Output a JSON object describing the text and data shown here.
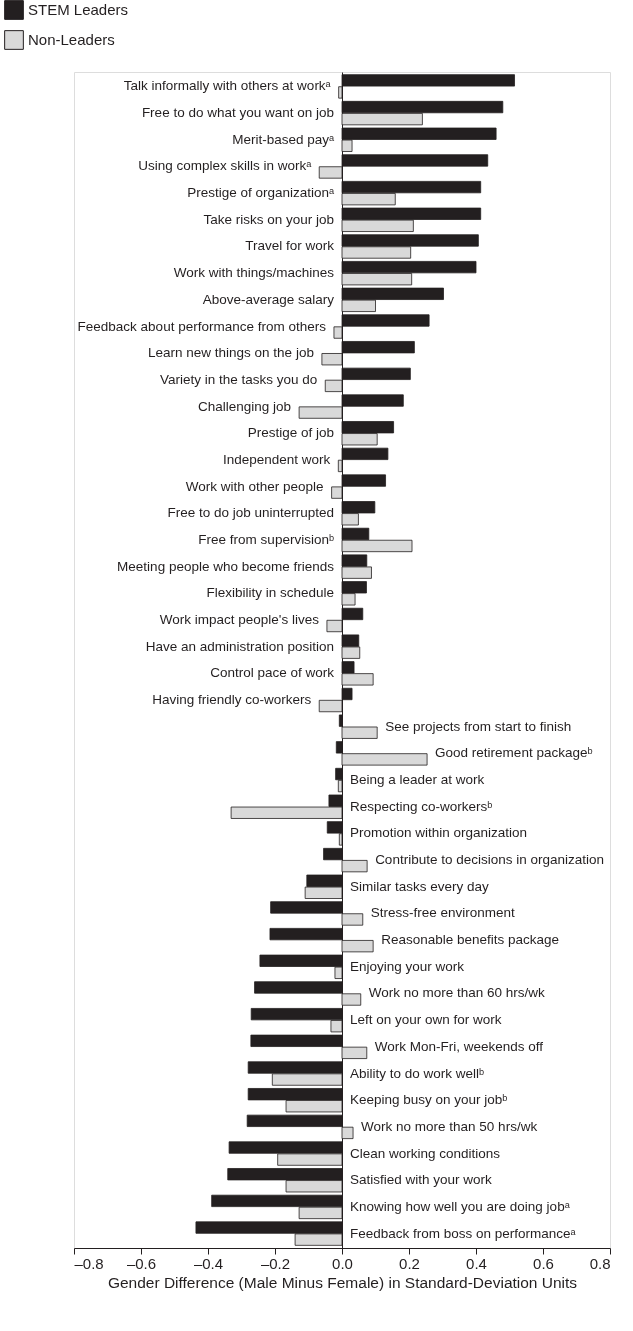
{
  "chart_data": {
    "type": "bar",
    "orientation": "horizontal",
    "xlabel": "Gender Difference (Male Minus Female) in Standard-Deviation Units",
    "categories": [
      "Talk informally with others at workᵃ",
      "Free to do what you want on job",
      "Merit-based payᵃ",
      "Using complex skills in workᵃ",
      "Prestige of organizationᵃ",
      "Take risks on your job",
      "Travel for work",
      "Work with things/machines",
      "Above-average salary",
      "Feedback about performance from others",
      "Learn new things on the job",
      "Variety in the tasks you do",
      "Challenging job",
      "Prestige of job",
      "Independent work",
      "Work with other people",
      "Free to do job uninterrupted",
      "Free from supervisionᵇ",
      "Meeting people who become friends",
      "Flexibility in schedule",
      "Work impact people's lives",
      "Have an administration position",
      "Control pace of work",
      "Having friendly co-workers",
      "See projects from start to finish",
      "Good retirement packageᵇ",
      "Being a leader at work",
      "Respecting co-workersᵇ",
      "Promotion within organization",
      "Contribute to decisions in organization",
      "Similar tasks every day",
      "Stress-free environment",
      "Reasonable benefits package",
      "Enjoying your work",
      "Work no more than 60 hrs/wk",
      "Left on your own for work",
      "Work Mon-Fri, weekends off",
      "Ability to do work wellᵇ",
      "Keeping busy on your jobᵇ",
      "Work no more than 50 hrs/wk",
      "Clean working conditions",
      "Satisfied with your work",
      "Knowing how well you are doing jobᵃ",
      "Feedback from boss on performanceᵃ"
    ],
    "series": [
      {
        "name": "STEM Leaders",
        "color": "#231f20",
        "values": [
          0.515,
          0.48,
          0.46,
          0.435,
          0.414,
          0.414,
          0.407,
          0.4,
          0.303,
          0.26,
          0.216,
          0.204,
          0.183,
          0.154,
          0.137,
          0.13,
          0.098,
          0.08,
          0.074,
          0.073,
          0.062,
          0.05,
          0.036,
          0.03,
          -0.008,
          -0.017,
          -0.019,
          -0.039,
          -0.044,
          -0.055,
          -0.105,
          -0.213,
          -0.215,
          -0.245,
          -0.261,
          -0.271,
          -0.272,
          -0.28,
          -0.28,
          -0.283,
          -0.337,
          -0.341,
          -0.389,
          -0.436
        ]
      },
      {
        "name": "Non-Leaders",
        "color": "#d9d9d9",
        "values": [
          -0.01,
          0.24,
          0.03,
          -0.068,
          0.159,
          0.213,
          0.205,
          0.208,
          0.1,
          -0.024,
          -0.06,
          -0.05,
          -0.128,
          0.105,
          -0.011,
          -0.031,
          0.049,
          0.209,
          0.088,
          0.039,
          -0.045,
          0.053,
          0.093,
          -0.068,
          0.105,
          0.254,
          -0.011,
          -0.331,
          -0.008,
          0.075,
          -0.11,
          0.062,
          0.093,
          -0.021,
          0.056,
          -0.033,
          0.074,
          -0.208,
          -0.167,
          0.033,
          -0.192,
          -0.167,
          -0.128,
          -0.14
        ]
      }
    ],
    "xlim": [
      -0.8,
      0.8
    ],
    "xticks": [
      {
        "value": -0.8,
        "label": "–0.8"
      },
      {
        "value": -0.6,
        "label": "–0.6"
      },
      {
        "value": -0.4,
        "label": "–0.4"
      },
      {
        "value": -0.2,
        "label": "–0.2"
      },
      {
        "value": 0,
        "label": "0.0"
      },
      0.2,
      0.4,
      0.6,
      0.8
    ],
    "grid": false,
    "legend": "top left"
  }
}
